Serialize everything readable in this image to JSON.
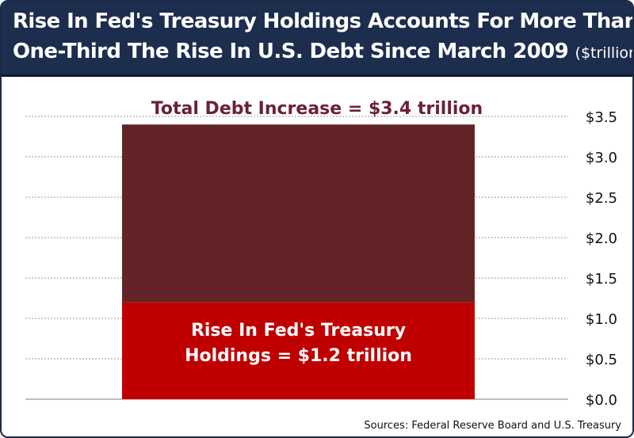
{
  "title": {
    "line1": "Rise In Fed's Treasury Holdings Accounts For More Than",
    "line2": "One-Third The Rise In U.S. Debt Since March 2009",
    "unit": "($trillions)"
  },
  "source": "Sources: Federal Reserve Board and U.S. Treasury",
  "colors": {
    "total_bar": "#622426",
    "fed_bar": "#c00000",
    "total_label": "#6b1f3e",
    "grid": "#9a9a9a"
  },
  "chart_data": {
    "type": "bar",
    "stacked": true,
    "categories": [
      ""
    ],
    "series": [
      {
        "name": "",
        "values": [
          1.2
        ]
      },
      {
        "name": "",
        "values": [
          2.2
        ]
      }
    ],
    "total": 3.4,
    "annotations": [
      "Total Debt Increase = $3.4 trillion",
      "Rise In Fed's Treasury",
      "Holdings = $1.2 trillion"
    ],
    "yticks": [
      "$0.0",
      "$0.5",
      "$1.0",
      "$1.5",
      "$2.0",
      "$2.5",
      "$3.0",
      "$3.5"
    ],
    "ytick_values": [
      0,
      0.5,
      1.0,
      1.5,
      2.0,
      2.5,
      3.0,
      3.5
    ],
    "ylim": [
      0,
      3.5
    ],
    "y_axis_side": "right",
    "grid": true,
    "xlabel": "",
    "ylabel": ""
  }
}
